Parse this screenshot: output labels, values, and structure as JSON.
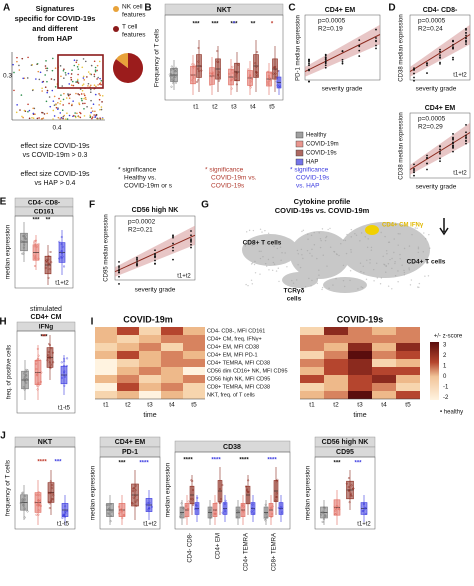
{
  "panels": {
    "a": {
      "label": "A",
      "title": [
        "Signatures",
        "specific for COVID-19s",
        "and different",
        "from HAP"
      ],
      "y_tick": "0.3",
      "x_tick": "0.4",
      "legend": [
        [
          "NK cell",
          "features"
        ],
        [
          "T cell",
          "features"
        ]
      ],
      "criteria": [
        "effect size COVID-19s",
        "vs COVID-19m > 0.3",
        "effect size COVID-19s",
        "vs HAP > 0.4"
      ]
    },
    "b": {
      "label": "B",
      "header": "NKT",
      "y_label": "Frequency of T cells",
      "x_ticks": [
        "t1",
        "t2",
        "t3",
        "t4",
        "t5"
      ],
      "stars": [
        "***",
        "***",
        "***",
        "**",
        "*",
        "*"
      ],
      "legend": [
        "Healthy",
        "COVID-19m",
        "COVID-19s",
        "HAP"
      ],
      "significance": [
        [
          "* significance",
          "Healthy vs.",
          "COVID-19m or s"
        ],
        [
          "* significance",
          "COVID-19m vs.",
          "COVID-19s"
        ],
        [
          "* significance",
          "COVID-19s",
          "vs. HAP"
        ]
      ]
    },
    "c": {
      "label": "C",
      "header": "CD4+ EM",
      "p": "p=0.0005",
      "r2": "R2=0.19",
      "y_label": "PD-1 median expression",
      "x_label": "severity grade"
    },
    "d": {
      "label": "D",
      "top": {
        "header": "CD4- CD8-",
        "p": "p=0.0005",
        "r2": "R2=0.24",
        "y_label": "CD38 median expression",
        "x_label": "severity grade",
        "note": "t1+t2"
      },
      "bottom": {
        "header": "CD4+ EM",
        "p": "p=0.0005",
        "r2": "R2=0.29",
        "y_label": "CD38 median expression",
        "x_label": "severity grade",
        "note": "t1+t2"
      }
    },
    "e": {
      "label": "E",
      "header": [
        "CD4- CD8-",
        "CD161"
      ],
      "y_label": "median expression",
      "note": "t1+t2",
      "stars": [
        "***",
        "**"
      ]
    },
    "f": {
      "label": "F",
      "header": "CD56 high NK",
      "p": "p=0.0002",
      "r2": "R2=0.21",
      "y_label": "CD95 median expression",
      "x_label": "severity grade",
      "note": "t1+t2"
    },
    "g": {
      "label": "G",
      "title": [
        "Cytokine profile",
        "COVID-19s vs. COVID-19m"
      ],
      "clusters": [
        "CD8+ T cells",
        "CD4+ CM IFNγ",
        "CD4+ T cells",
        "TCRγδ",
        "cells"
      ]
    },
    "h": {
      "label": "H",
      "title": [
        "stimulated",
        "CD4+ CM"
      ],
      "header": "IFNg",
      "y_label": "freq. of positive cells",
      "note": "t1-t5",
      "stars": [
        "***",
        "**"
      ]
    },
    "i": {
      "label": "I",
      "left_title": "COVID-19m",
      "right_title": "COVID-19s",
      "rows": [
        "CD4- CD8-, MFI CD161",
        "CD4+ CM, freq. IFNγ+",
        "CD4+ EM, MFI CD38",
        "CD4+ EM, MFI PD-1",
        "CD4+ TEMRA, MFI CD38",
        "CD56 dim CD16+ NK, MFI CD95",
        "CD56 high NK, MFI CD95",
        "CD8+ TEMRA, MFI CD38",
        "NKT, freq. of T cells"
      ],
      "x_ticks": [
        "t1",
        "t2",
        "t3",
        "t4",
        "t5"
      ],
      "x_label": "time",
      "scale_title": "+/- z-score",
      "scale_ticks": [
        "3",
        "2",
        "1",
        "0",
        "-1",
        "-2"
      ],
      "healthy": "• healthy"
    },
    "j": {
      "label": "J",
      "nkt": {
        "header": "NKT",
        "y_label": "frequency of T cells",
        "note": "t1-t5",
        "stars": [
          "****",
          "***"
        ]
      },
      "pd1": {
        "header": [
          "CD4+ EM",
          "PD-1"
        ],
        "y_label": "median expression",
        "note": "t1+t2",
        "stars": [
          "***",
          "****"
        ]
      },
      "cd38": {
        "header": "CD38",
        "y_label": "median expression",
        "groups": [
          "CD4- CD8-",
          "CD4+ EM",
          "CD4+ TEMRA",
          "CD8+ TEMRA"
        ],
        "stars": [
          "****",
          "****",
          "****",
          "****"
        ]
      },
      "cd95": {
        "header": [
          "CD56 high NK",
          "CD95"
        ],
        "y_label": "median expression",
        "note": "t1+t2",
        "stars": [
          "***",
          "***"
        ]
      }
    }
  }
}
